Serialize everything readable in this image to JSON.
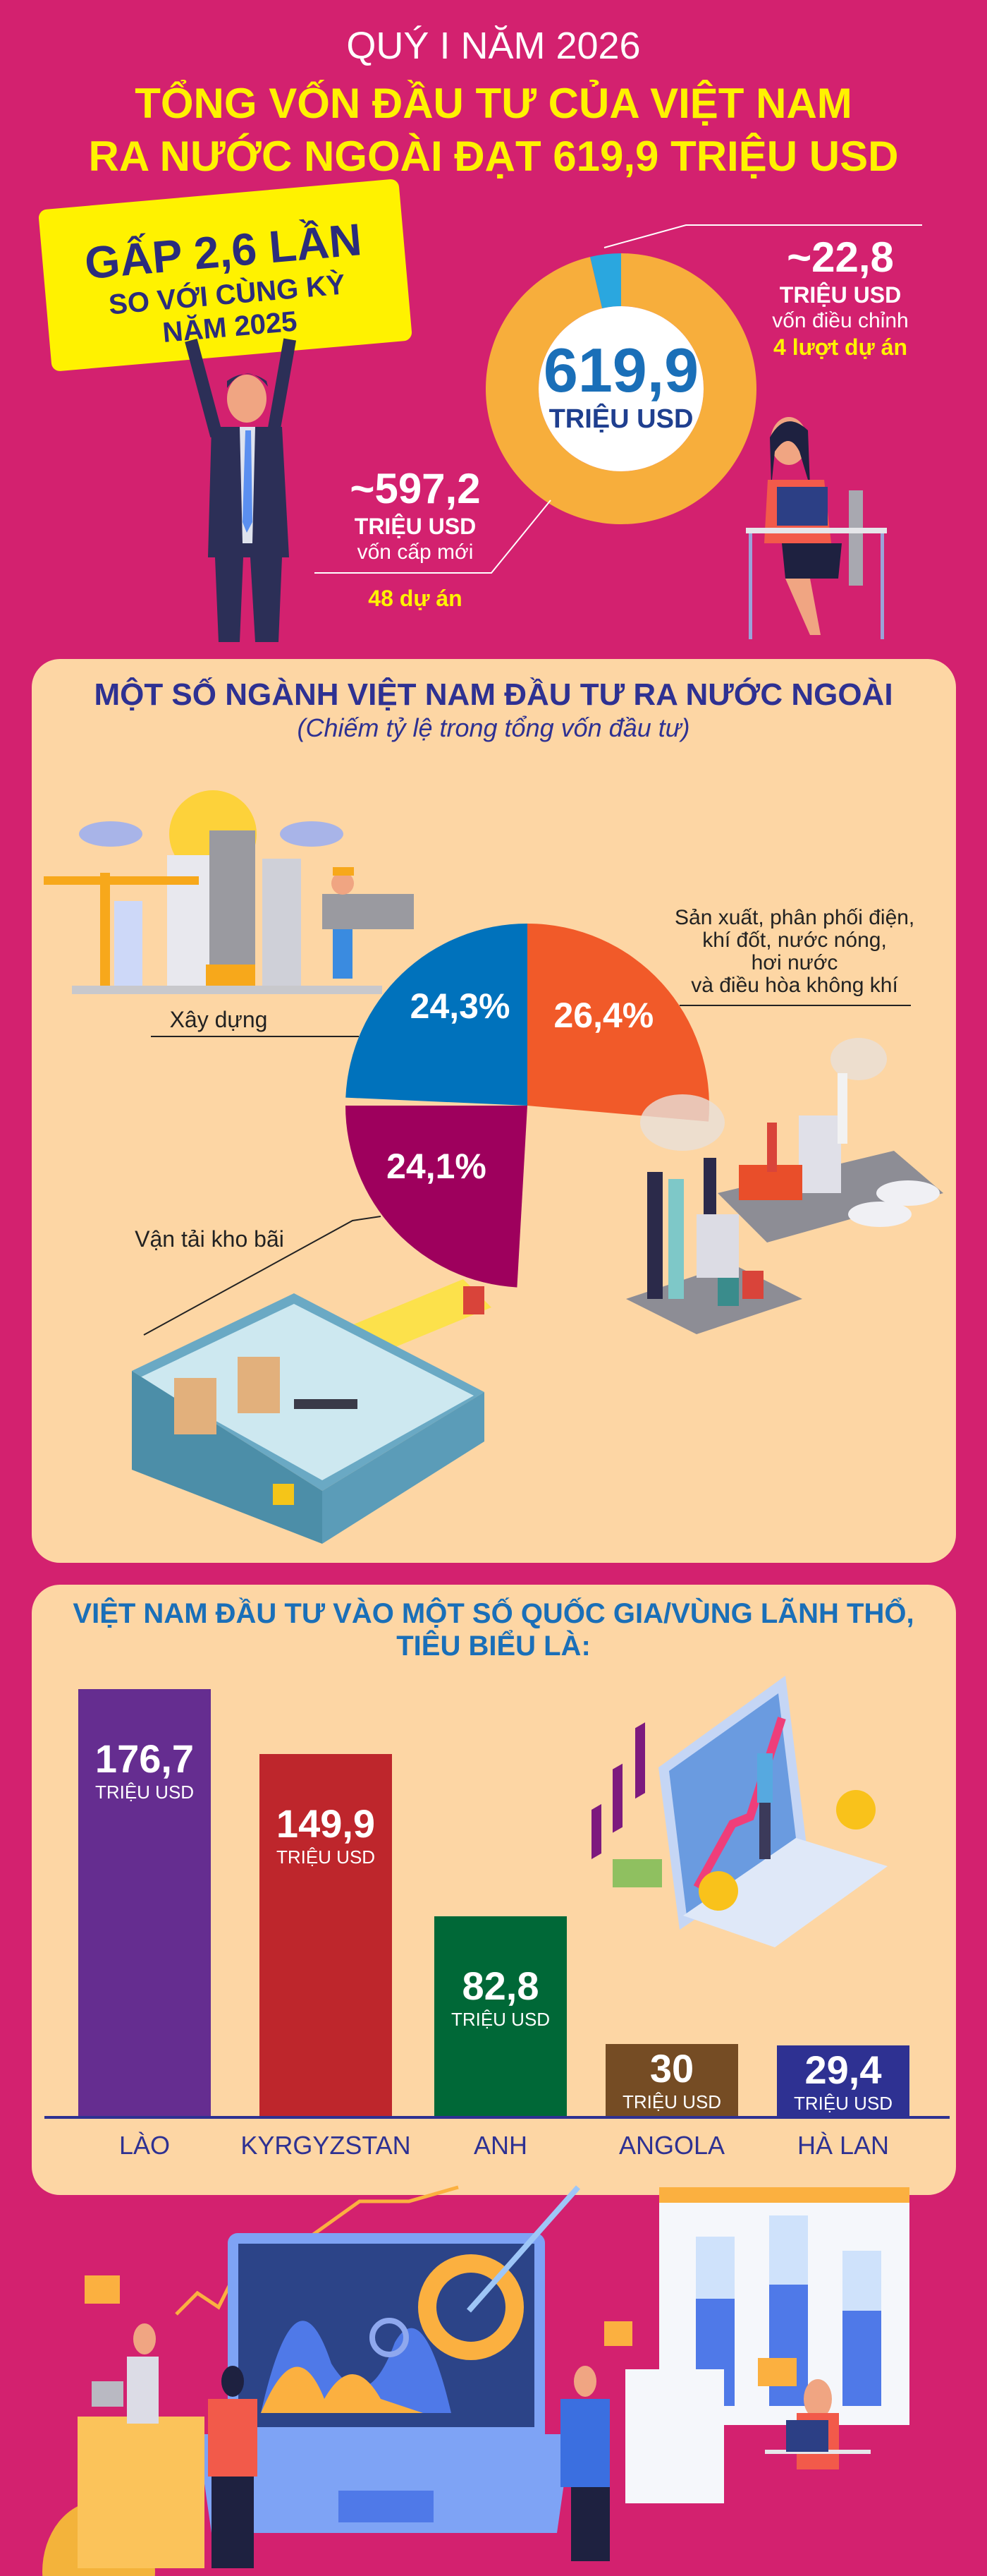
{
  "header": {
    "period": "QUÝ I NĂM 2026",
    "title_line1": "TỔNG VỐN ĐẦU TƯ CỦA VIỆT NAM",
    "title_line2": "RA NƯỚC NGOÀI ĐẠT 619,9 TRIỆU USD"
  },
  "sign": {
    "line1": "GẤP 2,6 LẦN",
    "line2": "SO VỚI CÙNG KỲ",
    "line3": "NĂM 2025"
  },
  "total": {
    "value": "619,9",
    "unit": "TRIỆU USD"
  },
  "adjusted": {
    "value": "~22,8",
    "unit": "TRIỆU USD",
    "label": "vốn điều chỉnh",
    "count": "4 lượt dự án"
  },
  "new_capital": {
    "value": "~597,2",
    "unit": "TRIỆU USD",
    "label": "vốn cấp mới",
    "count": "48 dự án"
  },
  "sectors": {
    "title": "MỘT SỐ NGÀNH VIỆT NAM ĐẦU TƯ RA NƯỚC NGOÀI",
    "subtitle": "(Chiếm tỷ lệ trong tổng vốn đầu tư)"
  },
  "countries": {
    "title": "VIỆT NAM ĐẦU TƯ VÀO MỘT SỐ QUỐC GIA/VÙNG LÃNH THỔ, TIÊU BIỂU LÀ:"
  },
  "colors": {
    "background": "#d3216f",
    "panel": "#fdd6a4",
    "title_yellow": "#fff200",
    "navy": "#2e3192"
  },
  "chart_data": [
    {
      "type": "pie",
      "variant": "donut",
      "total": 619.9,
      "slices": [
        {
          "label": "vốn cấp mới",
          "value": 597.2,
          "color": "#f7ae3c"
        },
        {
          "label": "vốn điều chỉnh",
          "value": 22.8,
          "color": "#2aa7df"
        }
      ]
    },
    {
      "type": "pie",
      "slices": [
        {
          "label": "Xây dựng",
          "value": 24.3,
          "display": "24,3%",
          "color": "#0072bc"
        },
        {
          "label_lines": [
            "Sản xuất, phân phối điện,",
            "khí đốt, nước nóng,",
            "hơi nước",
            "và điều hòa không khí"
          ],
          "value": 26.4,
          "display": "26,4%",
          "color": "#f15a29"
        },
        {
          "label": "Vận tải kho bãi",
          "value": 24.1,
          "display": "24,1%",
          "color": "#9e005d"
        }
      ]
    },
    {
      "type": "bar",
      "categories": [
        "LÀO",
        "KYRGYZSTAN",
        "ANH",
        "ANGOLA",
        "HÀ LAN"
      ],
      "values": [
        176.7,
        149.9,
        82.8,
        30,
        29.4
      ],
      "value_labels": [
        "176,7",
        "149,9",
        "82,8",
        "30",
        "29,4"
      ],
      "unit": "TRIỆU USD",
      "colors": [
        "#652d90",
        "#be262c",
        "#006837",
        "#754c24",
        "#2e3192"
      ]
    }
  ]
}
